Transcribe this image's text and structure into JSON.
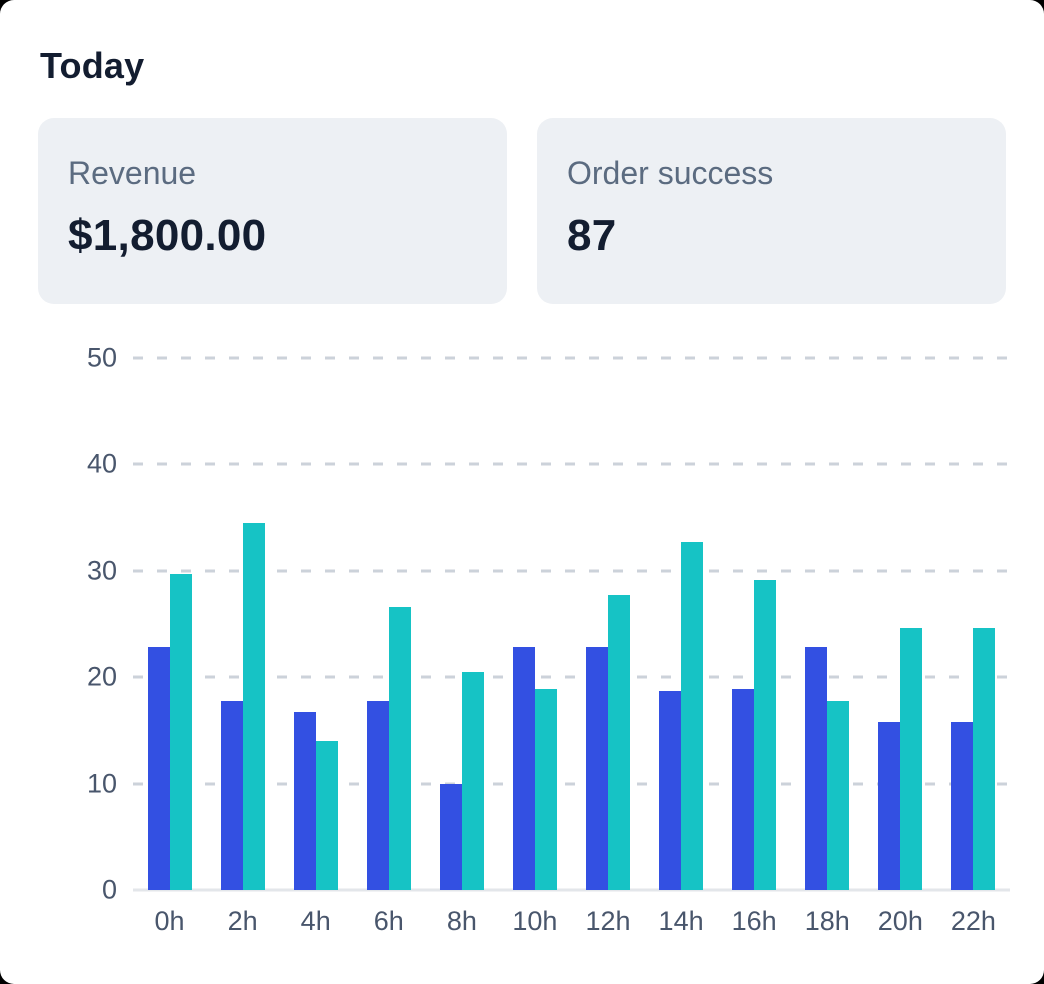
{
  "header": {
    "title": "Today"
  },
  "cards": [
    {
      "label": "Revenue",
      "value": "$1,800.00"
    },
    {
      "label": "Order success",
      "value": "87"
    }
  ],
  "chart_data": {
    "type": "bar",
    "title": "",
    "xlabel": "",
    "ylabel": "",
    "categories": [
      "0h",
      "2h",
      "4h",
      "6h",
      "8h",
      "10h",
      "12h",
      "14h",
      "16h",
      "18h",
      "20h",
      "22h"
    ],
    "series": [
      {
        "name": "blue",
        "color": "#3350e2",
        "values": [
          22.8,
          17.8,
          16.7,
          17.8,
          10.0,
          22.8,
          22.8,
          18.7,
          18.9,
          22.8,
          15.8,
          15.8
        ]
      },
      {
        "name": "teal",
        "color": "#16c3c5",
        "values": [
          29.7,
          34.5,
          14.0,
          26.6,
          20.5,
          18.9,
          27.7,
          32.7,
          29.1,
          17.8,
          24.6,
          24.6
        ]
      }
    ],
    "ylim": [
      0,
      50
    ],
    "yticks": [
      0,
      10,
      20,
      30,
      40,
      50
    ],
    "grid": "horizontal-dashed",
    "legend": "none"
  },
  "colors": {
    "accent_blue": "#3350e2",
    "accent_teal": "#16c3c5",
    "card_background": "#edf0f4",
    "text_dark": "#131d30",
    "text_muted": "#5b6b80",
    "axis_text": "#49566c",
    "gridline": "#ccd2da",
    "baseline": "#e3e6ea"
  }
}
